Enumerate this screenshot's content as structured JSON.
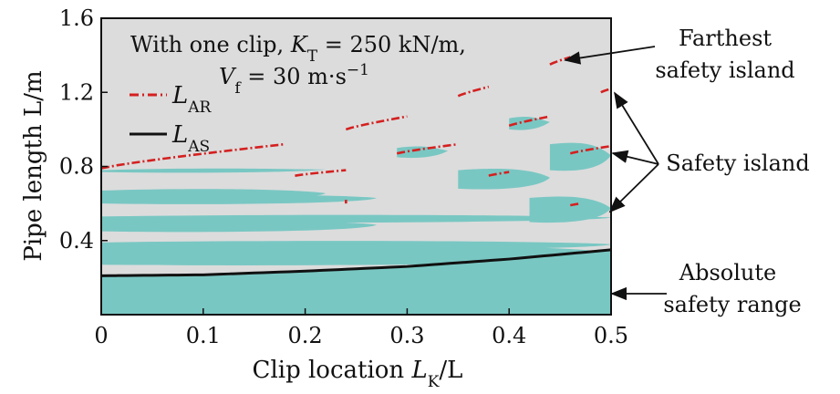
{
  "chart_data": {
    "type": "area",
    "title_line1_prefix": "With one clip, ",
    "title_line1_var": "K",
    "title_line1_sub": "T",
    "title_line1_value": " = 250 kN/m,",
    "title_line2_var": "V",
    "title_line2_sub": "f",
    "title_line2_value": " = 30 m·s",
    "title_line2_exp": "−1",
    "xlabel_prefix": "Clip location ",
    "xlabel_var": "L",
    "xlabel_sub": "K",
    "xlabel_suffix": "/L",
    "ylabel": "Pipe length L/m",
    "xlim": [
      0,
      0.5
    ],
    "ylim": [
      0,
      1.6
    ],
    "xticks": [
      "0",
      "0.1",
      "0.2",
      "0.3",
      "0.4",
      "0.5"
    ],
    "yticks": [
      "0.4",
      "0.8",
      "1.2",
      "1.6"
    ],
    "grid": false,
    "legend_position": "top-left",
    "legend": [
      {
        "var": "L",
        "sub": "AR",
        "style": "dash-dot",
        "color": "#d42020"
      },
      {
        "var": "L",
        "sub": "AS",
        "style": "solid",
        "color": "#111111"
      }
    ],
    "colors": {
      "background": "#dcdcdc",
      "safe_region": "#79c7c3",
      "L_AR": "#d42020",
      "L_AS": "#111111"
    },
    "series": [
      {
        "name": "L_AS",
        "x": [
          0,
          0.1,
          0.2,
          0.3,
          0.4,
          0.5
        ],
        "y": [
          0.21,
          0.215,
          0.235,
          0.26,
          0.3,
          0.35
        ]
      }
    ],
    "safe_regions": [
      {
        "label": "absolute",
        "x": [
          0,
          0.5
        ],
        "y_low": 0.0,
        "y_high_curve": "L_AS"
      },
      {
        "x": [
          0,
          0.5
        ],
        "band": [
          [
            0.27,
            0.34
          ],
          [
            0.27,
            0.37
          ],
          [
            0.35,
            0.39
          ],
          [
            0.5,
            0.53
          ]
        ]
      },
      {
        "x": [
          0,
          0.27
        ],
        "band": [
          [
            0.45,
            0.5
          ],
          [
            0.6,
            0.64
          ]
        ]
      },
      {
        "x": [
          0,
          0.22
        ],
        "band": [
          [
            0.62,
            0.67
          ],
          [
            0.77,
            0.78
          ]
        ]
      },
      {
        "x": [
          0.29,
          0.34
        ],
        "band": [
          [
            0.85,
            0.9
          ]
        ]
      },
      {
        "x": [
          0.35,
          0.44
        ],
        "band": [
          [
            0.68,
            0.78
          ]
        ]
      },
      {
        "x": [
          0.4,
          0.44
        ],
        "band": [
          [
            1.0,
            1.06
          ]
        ]
      },
      {
        "x": [
          0.44,
          0.5
        ],
        "band": [
          [
            0.78,
            0.92
          ]
        ]
      },
      {
        "x": [
          0.42,
          0.5
        ],
        "band": [
          [
            0.5,
            0.63
          ]
        ]
      }
    ],
    "L_AR_segments": [
      {
        "x": [
          0.0,
          0.18
        ],
        "y": [
          0.79,
          0.92
        ]
      },
      {
        "x": [
          0.19,
          0.24
        ],
        "y": [
          0.75,
          0.78
        ]
      },
      {
        "x": [
          0.24,
          0.3
        ],
        "y": [
          1.0,
          1.07
        ]
      },
      {
        "x": [
          0.29,
          0.35
        ],
        "y": [
          0.87,
          0.92
        ]
      },
      {
        "x": [
          0.35,
          0.38
        ],
        "y": [
          1.18,
          1.23
        ]
      },
      {
        "x": [
          0.38,
          0.4
        ],
        "y": [
          0.75,
          0.77
        ]
      },
      {
        "x": [
          0.4,
          0.44
        ],
        "y": [
          1.02,
          1.07
        ]
      },
      {
        "x": [
          0.44,
          0.46
        ],
        "y": [
          1.35,
          1.39
        ]
      },
      {
        "x": [
          0.46,
          0.5
        ],
        "y": [
          0.87,
          0.91
        ]
      },
      {
        "x": [
          0.49,
          0.5
        ],
        "y": [
          1.2,
          1.22
        ]
      },
      {
        "x": [
          0.46,
          0.47
        ],
        "y": [
          0.59,
          0.6
        ]
      },
      {
        "x": [
          0.24,
          0.24
        ],
        "y": [
          0.6,
          0.62
        ]
      }
    ],
    "annotations": [
      {
        "lines": [
          "Farthest",
          "safety island"
        ]
      },
      {
        "lines": [
          "Safety island"
        ]
      },
      {
        "lines": [
          "Absolute",
          "safety range"
        ]
      }
    ]
  }
}
